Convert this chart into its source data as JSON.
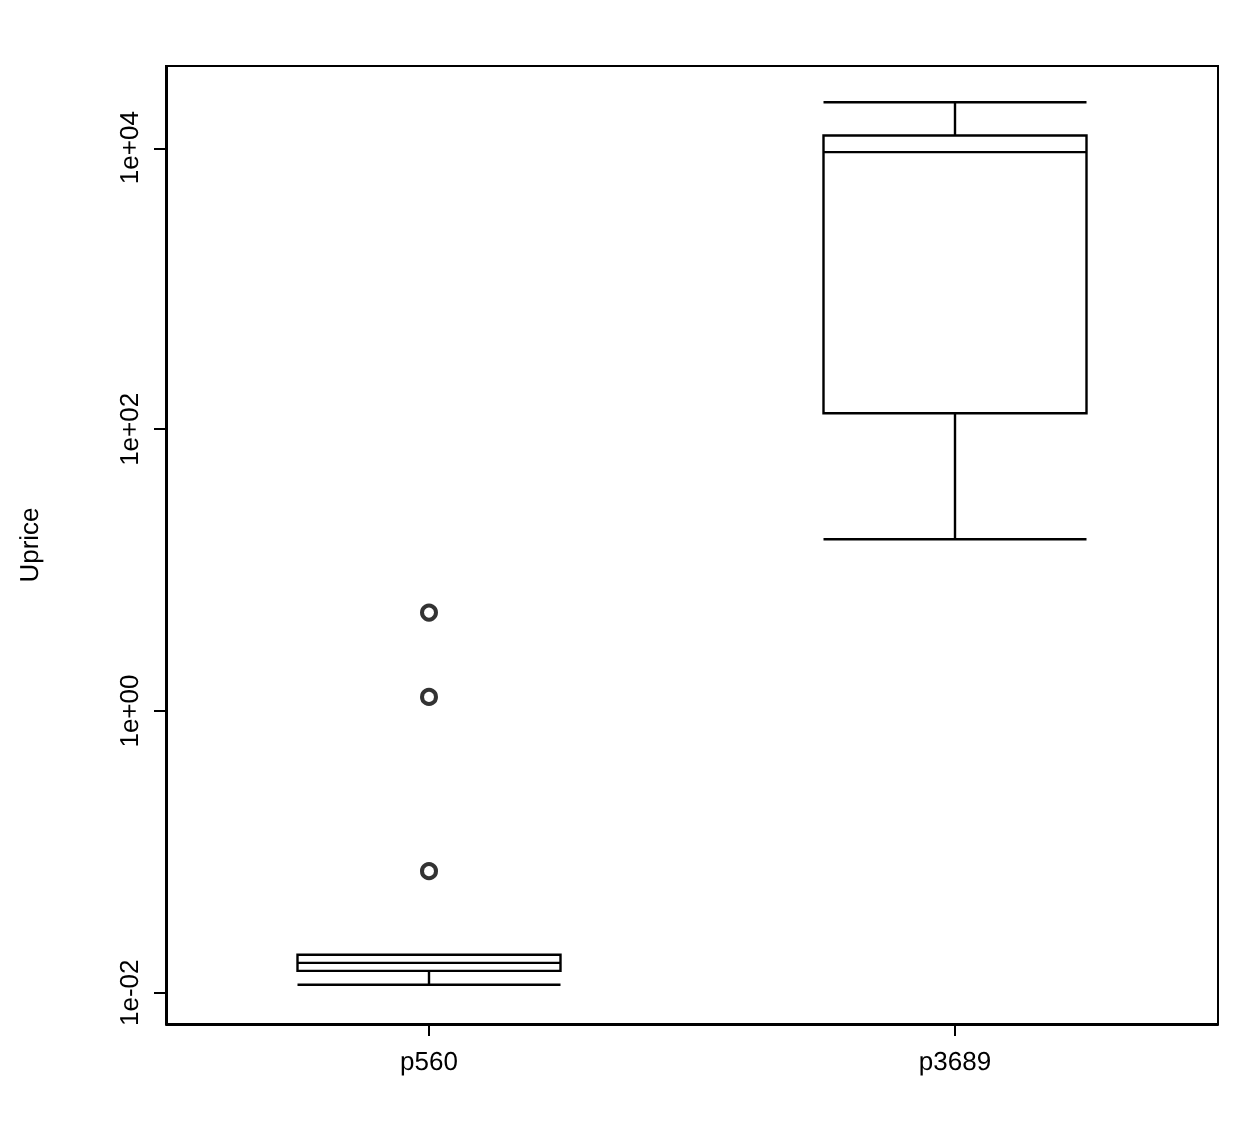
{
  "chart_data": {
    "type": "box",
    "ylabel": "Uprice",
    "categories": [
      "p560",
      "p3689"
    ],
    "boxes": [
      {
        "low": 0.0114,
        "q1": 0.0143,
        "median": 0.0163,
        "q3": 0.0186,
        "high": 0.0186,
        "outliers": [
          0.073,
          1.26,
          5
        ]
      },
      {
        "low": 16.6,
        "q1": 130,
        "median": 9300,
        "q3": 12200,
        "high": 21000
      }
    ],
    "log": "y",
    "ylim": [
      0.006,
      38000
    ],
    "yticks": [
      {
        "value": 0.01,
        "label": "1e-02"
      },
      {
        "value": 1,
        "label": "1e+00"
      },
      {
        "value": 100,
        "label": "1e+02"
      },
      {
        "value": 10000,
        "label": "1e+04"
      }
    ],
    "grid": false,
    "marker": "circle",
    "color": "#000000"
  }
}
